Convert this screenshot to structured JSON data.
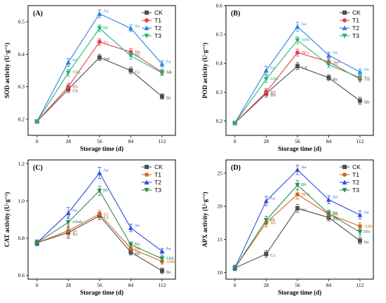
{
  "chart_data": [
    {
      "type": "line",
      "panel_label": "(A)",
      "xlabel": "Storage time (d)",
      "ylabel": "SOD activity (U·g⁻¹)",
      "x": [
        0,
        28,
        56,
        84,
        112
      ],
      "x_ticks": [
        "0",
        "28",
        "56",
        "84",
        "112"
      ],
      "ylim": [
        0.15,
        0.55
      ],
      "y_ticks": [
        0.2,
        0.3,
        0.4,
        0.5
      ],
      "y_tick_labels": [
        "0.2",
        "0.3",
        "0.4",
        "0.5"
      ],
      "legend_position": "top-right",
      "series": [
        {
          "name": "CK",
          "color": "#4d4d4d",
          "marker": "square",
          "values": [
            0.193,
            0.292,
            0.39,
            0.35,
            0.27
          ],
          "errors": [
            0.005,
            0.01,
            0.01,
            0.01,
            0.008
          ],
          "labels": [
            "",
            "Cb",
            "Dd",
            "Cc",
            "Bc"
          ]
        },
        {
          "name": "T1",
          "color": "#e8404a",
          "marker": "circle",
          "values": [
            0.193,
            0.3,
            0.438,
            0.407,
            0.345
          ],
          "errors": [
            0.005,
            0.01,
            0.01,
            0.01,
            0.008
          ],
          "labels": [
            "",
            "Bb",
            "Cc",
            "Bb",
            "Ab"
          ]
        },
        {
          "name": "T2",
          "color": "#2f7fe0",
          "marker": "triangle-up",
          "values": [
            0.193,
            0.375,
            0.525,
            0.48,
            0.37
          ],
          "errors": [
            0.005,
            0.012,
            0.012,
            0.01,
            0.01
          ],
          "labels": [
            "",
            "Aa",
            "Aa",
            "Aa",
            "Aa"
          ]
        },
        {
          "name": "T3",
          "color": "#22b573",
          "marker": "triangle-down",
          "values": [
            0.193,
            0.343,
            0.48,
            0.395,
            0.343
          ],
          "errors": [
            0.005,
            0.01,
            0.01,
            0.01,
            0.008
          ],
          "labels": [
            "",
            "ABa",
            "Bb",
            "Bb",
            "Ab"
          ]
        }
      ]
    },
    {
      "type": "line",
      "panel_label": "(B)",
      "xlabel": "Storage time (d)",
      "ylabel": "POD activity (U·g⁻¹)",
      "x": [
        0,
        28,
        56,
        84,
        112
      ],
      "x_ticks": [
        "0",
        "28",
        "56",
        "84",
        "112"
      ],
      "ylim": [
        0.15,
        0.6
      ],
      "y_ticks": [
        0.2,
        0.3,
        0.4,
        0.5,
        0.6
      ],
      "y_tick_labels": [
        "0.2",
        "0.3",
        "0.4",
        "0.5",
        "0.6"
      ],
      "legend_position": "top-right",
      "series": [
        {
          "name": "CK",
          "color": "#4d4d4d",
          "marker": "square",
          "values": [
            0.193,
            0.295,
            0.39,
            0.35,
            0.27
          ],
          "errors": [
            0.005,
            0.012,
            0.012,
            0.01,
            0.012
          ],
          "labels": [
            "",
            "Bb",
            "Cd",
            "Bc",
            "Bb"
          ]
        },
        {
          "name": "T1",
          "color": "#e8404a",
          "marker": "circle",
          "values": [
            0.193,
            0.3,
            0.437,
            0.405,
            0.345
          ],
          "errors": [
            0.005,
            0.012,
            0.012,
            0.01,
            0.01
          ],
          "labels": [
            "",
            "Bb",
            "BCc",
            "Aab",
            "Ad"
          ]
        },
        {
          "name": "T2",
          "color": "#2f7fe0",
          "marker": "triangle-up",
          "values": [
            0.193,
            0.375,
            0.527,
            0.428,
            0.37
          ],
          "errors": [
            0.005,
            0.015,
            0.015,
            0.01,
            0.01
          ],
          "labels": [
            "",
            "Aa",
            "Aa",
            "Aa",
            "Aa"
          ]
        },
        {
          "name": "T3",
          "color": "#22b573",
          "marker": "triangle-down",
          "values": [
            0.193,
            0.345,
            0.48,
            0.395,
            0.35
          ],
          "errors": [
            0.005,
            0.012,
            0.012,
            0.01,
            0.01
          ],
          "labels": [
            "",
            "ABa",
            "ABb",
            "Ab",
            "Aa"
          ]
        }
      ]
    },
    {
      "type": "line",
      "panel_label": "(C)",
      "xlabel": "Storage time (d)",
      "ylabel": "CAT activity (U·g⁻¹)",
      "x": [
        0,
        28,
        56,
        84,
        112
      ],
      "x_ticks": [
        "0",
        "28",
        "56",
        "84",
        "112"
      ],
      "ylim": [
        0.58,
        1.22
      ],
      "y_ticks": [
        0.6,
        0.8,
        1.0,
        1.2
      ],
      "y_tick_labels": [
        "0.6",
        "0.8",
        "1.0",
        "1.2"
      ],
      "legend_position": "top-right",
      "series": [
        {
          "name": "CK",
          "color": "#4d4d4d",
          "marker": "square",
          "values": [
            0.775,
            0.83,
            0.92,
            0.725,
            0.625
          ],
          "errors": [
            0.015,
            0.03,
            0.02,
            0.015,
            0.015
          ],
          "labels": [
            "",
            "Bc",
            "Cc",
            "Bb",
            "Bc"
          ]
        },
        {
          "name": "T1",
          "color": "#d2691e",
          "marker": "circle",
          "values": [
            0.775,
            0.84,
            0.93,
            0.745,
            0.675
          ],
          "errors": [
            0.015,
            0.03,
            0.02,
            0.015,
            0.015
          ],
          "labels": [
            "",
            "Bc",
            "Cc",
            "Bb",
            "ABb"
          ]
        },
        {
          "name": "T2",
          "color": "#2f4fe0",
          "marker": "triangle-up",
          "values": [
            0.775,
            0.935,
            1.15,
            0.855,
            0.73
          ],
          "errors": [
            0.015,
            0.03,
            0.03,
            0.02,
            0.015
          ],
          "labels": [
            "",
            "Aa",
            "Aa",
            "Aa",
            "Aa"
          ]
        },
        {
          "name": "T3",
          "color": "#2e8b57",
          "marker": "triangle-down",
          "values": [
            0.775,
            0.885,
            1.055,
            0.765,
            0.69
          ],
          "errors": [
            0.015,
            0.03,
            0.025,
            0.015,
            0.015
          ],
          "labels": [
            "",
            "ABab",
            "Bb",
            "Bb",
            "ABb"
          ]
        }
      ]
    },
    {
      "type": "line",
      "panel_label": "(D)",
      "xlabel": "Storage time (d)",
      "ylabel": "APX activity (U·g⁻¹)",
      "x": [
        0,
        28,
        56,
        84,
        112
      ],
      "x_ticks": [
        "0",
        "28",
        "56",
        "84",
        "112"
      ],
      "ylim": [
        9,
        27
      ],
      "y_ticks": [
        10,
        15,
        20,
        25
      ],
      "y_tick_labels": [
        "10",
        "15",
        "20",
        "25"
      ],
      "legend_position": "top-right",
      "series": [
        {
          "name": "CK",
          "color": "#4d4d4d",
          "marker": "square",
          "values": [
            10.7,
            12.8,
            19.7,
            18.3,
            14.8
          ],
          "errors": [
            0.4,
            0.5,
            0.6,
            0.5,
            0.5
          ],
          "labels": [
            "",
            "Cc",
            "Cc",
            "Bb",
            "Bc"
          ]
        },
        {
          "name": "T1",
          "color": "#d2691e",
          "marker": "circle",
          "values": [
            10.7,
            17.5,
            21.8,
            18.8,
            17.0
          ],
          "errors": [
            0.4,
            0.6,
            0.7,
            0.5,
            0.5
          ],
          "labels": [
            "",
            "Bb",
            "BCb",
            "Bb",
            "ABb"
          ]
        },
        {
          "name": "T2",
          "color": "#2f4fe0",
          "marker": "triangle-up",
          "values": [
            10.7,
            20.8,
            25.5,
            21.0,
            18.7
          ],
          "errors": [
            0.4,
            0.7,
            0.7,
            0.6,
            0.6
          ],
          "labels": [
            "",
            "Aa",
            "Aa",
            "Aa",
            "Aa"
          ]
        },
        {
          "name": "T3",
          "color": "#2e8b57",
          "marker": "triangle-down",
          "values": [
            10.7,
            17.9,
            23.2,
            18.9,
            16.1
          ],
          "errors": [
            0.4,
            0.6,
            0.7,
            0.5,
            0.5
          ],
          "labels": [
            "",
            "Bb",
            "Bb",
            "Bb",
            "Bbc"
          ]
        }
      ]
    }
  ]
}
